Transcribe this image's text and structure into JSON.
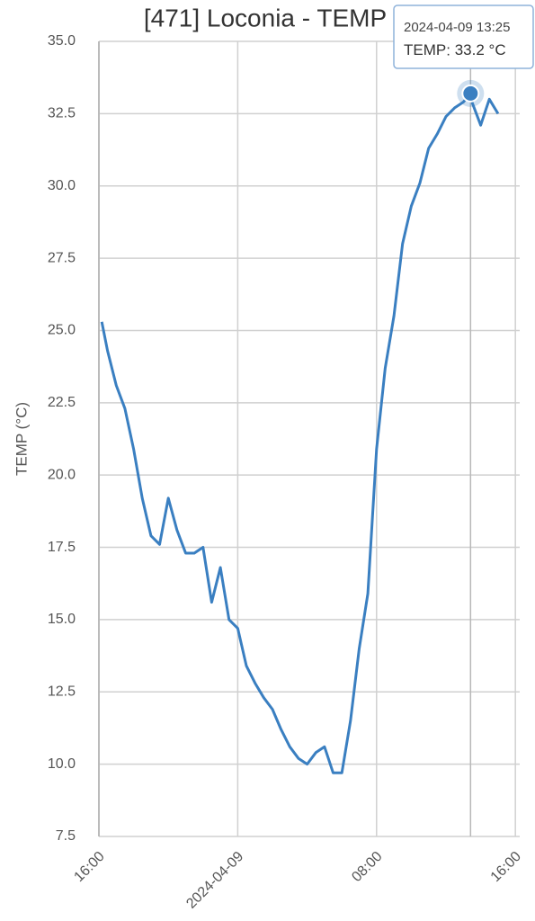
{
  "chart_data": {
    "type": "line",
    "title": "[471] Loconia - TEMP",
    "y_label": "TEMP (°C)",
    "unit": "°C",
    "x": [
      "2024-04-08 16:10",
      "2024-04-08 16:30",
      "2024-04-08 17:00",
      "2024-04-08 17:30",
      "2024-04-08 18:00",
      "2024-04-08 18:30",
      "2024-04-08 19:00",
      "2024-04-08 19:30",
      "2024-04-08 20:00",
      "2024-04-08 20:30",
      "2024-04-08 21:00",
      "2024-04-08 21:30",
      "2024-04-08 22:00",
      "2024-04-08 22:30",
      "2024-04-08 23:00",
      "2024-04-08 23:30",
      "2024-04-09 00:00",
      "2024-04-09 00:30",
      "2024-04-09 01:00",
      "2024-04-09 01:30",
      "2024-04-09 02:00",
      "2024-04-09 02:30",
      "2024-04-09 03:00",
      "2024-04-09 03:30",
      "2024-04-09 04:00",
      "2024-04-09 04:30",
      "2024-04-09 05:00",
      "2024-04-09 05:30",
      "2024-04-09 06:00",
      "2024-04-09 06:30",
      "2024-04-09 07:00",
      "2024-04-09 07:30",
      "2024-04-09 08:00",
      "2024-04-09 08:30",
      "2024-04-09 09:00",
      "2024-04-09 09:30",
      "2024-04-09 10:00",
      "2024-04-09 10:30",
      "2024-04-09 11:00",
      "2024-04-09 11:30",
      "2024-04-09 12:00",
      "2024-04-09 12:30",
      "2024-04-09 13:00",
      "2024-04-09 13:25",
      "2024-04-09 13:30",
      "2024-04-09 14:00",
      "2024-04-09 14:30",
      "2024-04-09 15:00"
    ],
    "series": [
      {
        "name": "TEMP",
        "color": "#3a7fc1",
        "values": [
          25.3,
          24.3,
          23.1,
          22.3,
          20.9,
          19.2,
          17.9,
          17.6,
          19.2,
          18.1,
          17.3,
          17.3,
          17.5,
          15.6,
          16.8,
          15.0,
          14.7,
          13.4,
          12.8,
          12.3,
          11.9,
          11.2,
          10.6,
          10.2,
          10.0,
          10.4,
          10.6,
          9.7,
          9.7,
          11.5,
          14.0,
          15.9,
          20.9,
          23.7,
          25.5,
          28.0,
          29.3,
          30.1,
          31.3,
          31.8,
          32.4,
          32.7,
          32.9,
          33.2,
          32.9,
          32.1,
          33.0,
          32.5
        ]
      }
    ],
    "hover_point": 43,
    "xlim": [
      "2024-04-08 16:00",
      "2024-04-09 16:15"
    ],
    "xticks": [
      {
        "value": "2024-04-08 16:00",
        "label": "16:00"
      },
      {
        "value": "2024-04-09 00:00",
        "label": "2024-04-09"
      },
      {
        "value": "2024-04-09 08:00",
        "label": "08:00"
      },
      {
        "value": "2024-04-09 16:00",
        "label": "16:00"
      }
    ],
    "ylim": [
      7.5,
      35
    ],
    "yticks": [
      {
        "value": 7.5,
        "label": "7.5"
      },
      {
        "value": 10,
        "label": "10.0"
      },
      12.5,
      {
        "value": 15,
        "label": "15.0"
      },
      17.5,
      {
        "value": 20,
        "label": "20.0"
      },
      22.5,
      {
        "value": 25,
        "label": "25.0"
      },
      27.5,
      {
        "value": 30,
        "label": "30.0"
      },
      32.5,
      {
        "value": 35,
        "label": "35.0"
      }
    ],
    "grid": true
  }
}
